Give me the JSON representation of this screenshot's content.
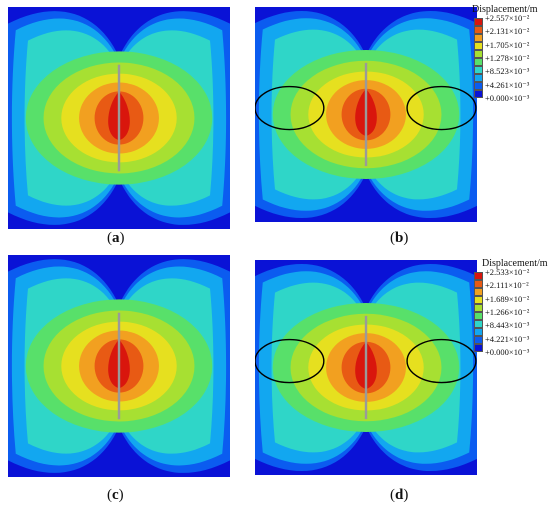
{
  "panels": [
    {
      "id": "a",
      "caption_open": "(",
      "caption_letter": "a",
      "caption_close": ")"
    },
    {
      "id": "b",
      "caption_open": "(",
      "caption_letter": "b",
      "caption_close": ")"
    },
    {
      "id": "c",
      "caption_open": "(",
      "caption_letter": "c",
      "caption_close": ")"
    },
    {
      "id": "d",
      "caption_open": "(",
      "caption_letter": "d",
      "caption_close": ")"
    }
  ],
  "legend_b": {
    "title": "Displacement/m",
    "labels": [
      "+2.557×10⁻²",
      "+2.131×10⁻²",
      "+1.705×10⁻²",
      "+1.278×10⁻²",
      "+8.523×10⁻³",
      "+4.261×10⁻³",
      "+0.000×10⁻³"
    ]
  },
  "legend_d": {
    "title": "Displacement/m",
    "labels": [
      "+2.533×10⁻²",
      "+2.111×10⁻²",
      "+1.689×10⁻²",
      "+1.266×10⁻²",
      "+8.443×10⁻³",
      "+4.221×10⁻³",
      "+0.000×10⁻³"
    ]
  },
  "colors": {
    "scale": [
      "#0a12d6",
      "#0b5cf0",
      "#12a7f0",
      "#2fd6c8",
      "#58e06a",
      "#a7e032",
      "#e6e01f",
      "#f2a020",
      "#e85a14",
      "#d9160d"
    ]
  }
}
